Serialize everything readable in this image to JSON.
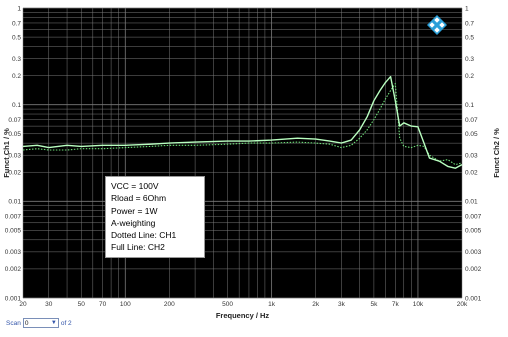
{
  "colors": {
    "plot_background": "#000000",
    "grid": "#7a7a7a",
    "ch1": "#6fe07a",
    "ch2": "#b9ffc0",
    "logo": "#2a9fd8"
  },
  "scan": {
    "label": "Scan",
    "value": "0",
    "of": "of 2"
  },
  "annotation": {
    "lines": [
      "VCC = 100V",
      "Rload = 6Ohm",
      "Power = 1W",
      "A-weighting",
      "Dotted Line: CH1",
      "Full Line: CH2"
    ]
  },
  "logo_icon": "rohde-schwarz-diamond-icon",
  "chart_data": {
    "type": "line",
    "title": "",
    "xlabel": "Frequency / Hz",
    "ylabel_left": "Funct Ch1 / %",
    "ylabel_right": "Funct Ch2 / %",
    "xscale": "log",
    "yscale": "log",
    "xlim": [
      20,
      20000
    ],
    "ylim": [
      0.001,
      1
    ],
    "grid": true,
    "x_ticks": [
      20,
      30,
      50,
      70,
      100,
      200,
      500,
      1000,
      2000,
      3000,
      5000,
      7000,
      10000,
      20000
    ],
    "x_tick_labels": [
      "20",
      "30",
      "50",
      "70",
      "100",
      "200",
      "500",
      "1k",
      "2k",
      "3k",
      "5k",
      "7k",
      "10k",
      "20k"
    ],
    "y_ticks": [
      0.001,
      0.002,
      0.003,
      0.005,
      0.007,
      0.01,
      0.02,
      0.03,
      0.05,
      0.07,
      0.1,
      0.2,
      0.3,
      0.5,
      0.7,
      1
    ],
    "y_tick_labels": [
      "0.001",
      "0.002",
      "0.003",
      "0.005",
      "0.007",
      "0.01",
      "0.02",
      "0.03",
      "0.05",
      "0.07",
      "0.1",
      "0.2",
      "0.3",
      "0.5",
      "0.7",
      "1"
    ],
    "series": [
      {
        "name": "CH1",
        "style": "dotted",
        "x": [
          20,
          25,
          30,
          40,
          50,
          70,
          100,
          150,
          200,
          300,
          500,
          700,
          1000,
          1500,
          2000,
          2500,
          3000,
          3500,
          4000,
          4500,
          5000,
          5500,
          6000,
          6500,
          7000,
          7500,
          8000,
          9000,
          10000,
          11000,
          12000,
          14000,
          16000,
          18000,
          20000
        ],
        "y": [
          0.034,
          0.035,
          0.034,
          0.034,
          0.035,
          0.035,
          0.036,
          0.037,
          0.038,
          0.038,
          0.039,
          0.04,
          0.04,
          0.041,
          0.04,
          0.039,
          0.036,
          0.038,
          0.045,
          0.055,
          0.07,
          0.09,
          0.115,
          0.14,
          0.165,
          0.045,
          0.037,
          0.036,
          0.038,
          0.037,
          0.03,
          0.026,
          0.027,
          0.024,
          0.025
        ]
      },
      {
        "name": "CH2",
        "style": "solid",
        "x": [
          20,
          25,
          30,
          40,
          50,
          70,
          100,
          150,
          200,
          300,
          500,
          700,
          1000,
          1500,
          2000,
          2500,
          3000,
          3500,
          4000,
          4500,
          5000,
          5500,
          6000,
          6500,
          7000,
          7500,
          8000,
          9000,
          10000,
          11000,
          12000,
          14000,
          16000,
          18000,
          20000
        ],
        "y": [
          0.037,
          0.038,
          0.036,
          0.038,
          0.037,
          0.038,
          0.038,
          0.039,
          0.04,
          0.041,
          0.042,
          0.042,
          0.043,
          0.045,
          0.044,
          0.042,
          0.04,
          0.043,
          0.055,
          0.075,
          0.11,
          0.14,
          0.17,
          0.195,
          0.11,
          0.06,
          0.065,
          0.06,
          0.059,
          0.04,
          0.028,
          0.026,
          0.023,
          0.022,
          0.024
        ]
      }
    ]
  }
}
